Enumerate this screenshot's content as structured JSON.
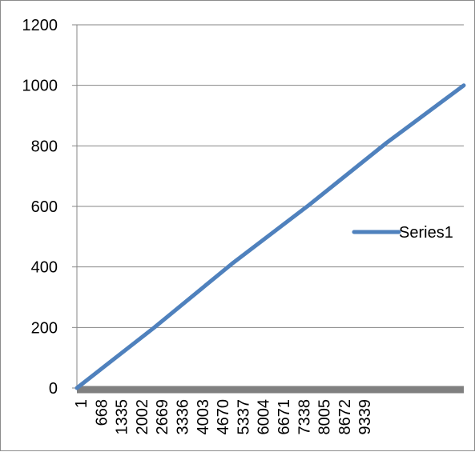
{
  "chart_data": {
    "type": "line",
    "title": "",
    "xlabel": "",
    "ylabel": "",
    "ylim": [
      0,
      1200
    ],
    "y_ticks": [
      0,
      200,
      400,
      600,
      800,
      1000,
      1200
    ],
    "x_tick_labels": [
      "1",
      "668",
      "1335",
      "2002",
      "2669",
      "3336",
      "4003",
      "4670",
      "5337",
      "6004",
      "6671",
      "7338",
      "8005",
      "8672",
      "9339"
    ],
    "x_range": [
      1,
      10000
    ],
    "grid": "horizontal",
    "legend_position": "right",
    "series": [
      {
        "name": "Series1",
        "color": "#4f81bd",
        "x": [
          1,
          2002,
          4003,
          6004,
          8005,
          10000
        ],
        "y": [
          0,
          200,
          410,
          605,
          810,
          1000
        ]
      }
    ]
  }
}
